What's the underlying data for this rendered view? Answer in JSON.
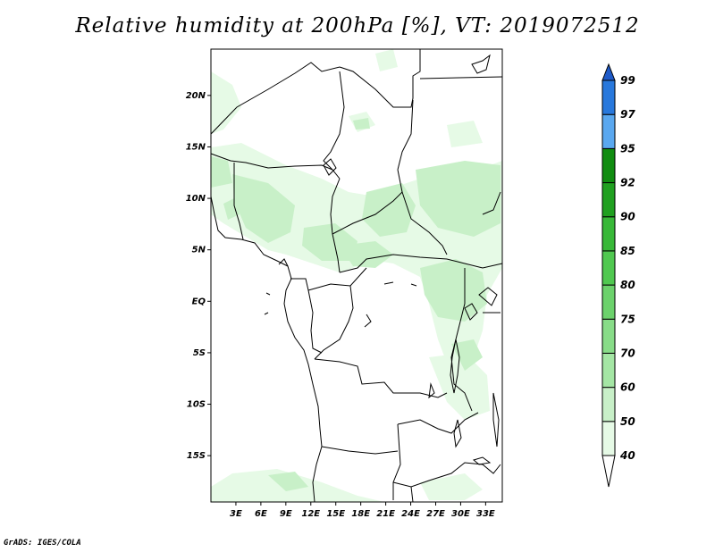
{
  "title": "Relative humidity at 200hPa [%], VT: 2019072512",
  "credit": "GrADS: IGES/COLA",
  "map": {
    "lat_labels": [
      "20N",
      "15N",
      "10N",
      "5N",
      "EQ",
      "5S",
      "10S",
      "15S"
    ],
    "lon_labels": [
      "3E",
      "6E",
      "9E",
      "12E",
      "15E",
      "18E",
      "21E",
      "24E",
      "27E",
      "30E",
      "33E"
    ],
    "extent": {
      "lon_min": 0,
      "lon_max": 35,
      "lat_min": -19.5,
      "lat_max": 24.5
    }
  },
  "colorbar": {
    "levels": [
      "40",
      "50",
      "60",
      "70",
      "75",
      "80",
      "85",
      "90",
      "92",
      "95",
      "97",
      "99"
    ],
    "colors": [
      "#ffffff",
      "#e6fae6",
      "#c8f0c8",
      "#a4e6a4",
      "#88dc88",
      "#6cd26c",
      "#50c850",
      "#38b838",
      "#20a020",
      "#108c10",
      "#5aa8f0",
      "#2878dc",
      "#1e5ac8"
    ],
    "arrow_ends": true
  },
  "colors": {
    "land_outline": "#000000",
    "humidity_light": "#e6fae6",
    "humidity_mid": "#c8f0c8"
  }
}
